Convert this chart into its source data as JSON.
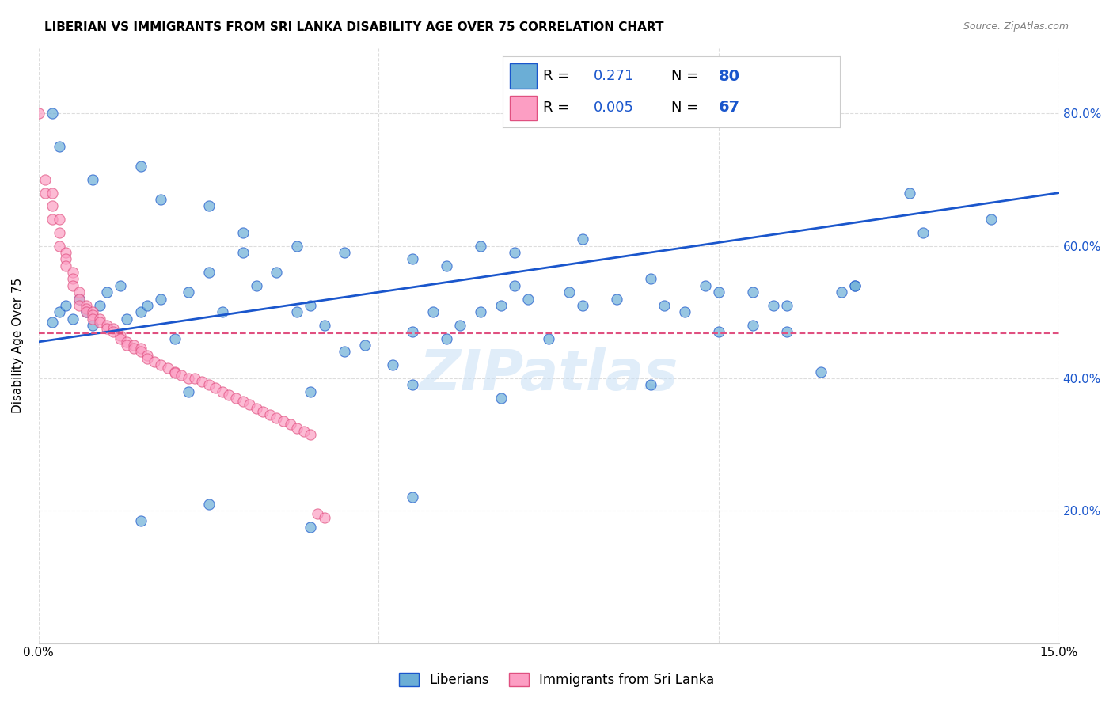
{
  "title": "LIBERIAN VS IMMIGRANTS FROM SRI LANKA DISABILITY AGE OVER 75 CORRELATION CHART",
  "source": "Source: ZipAtlas.com",
  "ylabel": "Disability Age Over 75",
  "legend_label_blue": "Liberians",
  "legend_label_pink": "Immigrants from Sri Lanka",
  "R_blue": "0.271",
  "N_blue": "80",
  "R_pink": "0.005",
  "N_pink": "67",
  "blue_color": "#6baed6",
  "pink_color": "#fc9ec3",
  "line_blue": "#1a56cc",
  "line_pink": "#e05080",
  "watermark": "ZIPatlas",
  "blue_scatter": [
    [
      0.002,
      0.485
    ],
    [
      0.003,
      0.5
    ],
    [
      0.004,
      0.51
    ],
    [
      0.005,
      0.49
    ],
    [
      0.006,
      0.52
    ],
    [
      0.007,
      0.5
    ],
    [
      0.008,
      0.48
    ],
    [
      0.009,
      0.51
    ],
    [
      0.01,
      0.53
    ],
    [
      0.012,
      0.54
    ],
    [
      0.013,
      0.49
    ],
    [
      0.015,
      0.5
    ],
    [
      0.016,
      0.51
    ],
    [
      0.018,
      0.52
    ],
    [
      0.02,
      0.46
    ],
    [
      0.022,
      0.53
    ],
    [
      0.025,
      0.56
    ],
    [
      0.027,
      0.5
    ],
    [
      0.03,
      0.59
    ],
    [
      0.032,
      0.54
    ],
    [
      0.035,
      0.56
    ],
    [
      0.038,
      0.5
    ],
    [
      0.04,
      0.51
    ],
    [
      0.042,
      0.48
    ],
    [
      0.045,
      0.44
    ],
    [
      0.048,
      0.45
    ],
    [
      0.052,
      0.42
    ],
    [
      0.055,
      0.47
    ],
    [
      0.058,
      0.5
    ],
    [
      0.06,
      0.46
    ],
    [
      0.062,
      0.48
    ],
    [
      0.065,
      0.5
    ],
    [
      0.068,
      0.51
    ],
    [
      0.07,
      0.54
    ],
    [
      0.072,
      0.52
    ],
    [
      0.075,
      0.46
    ],
    [
      0.078,
      0.53
    ],
    [
      0.08,
      0.51
    ],
    [
      0.085,
      0.52
    ],
    [
      0.09,
      0.55
    ],
    [
      0.092,
      0.51
    ],
    [
      0.095,
      0.5
    ],
    [
      0.098,
      0.54
    ],
    [
      0.1,
      0.53
    ],
    [
      0.105,
      0.48
    ],
    [
      0.108,
      0.51
    ],
    [
      0.11,
      0.47
    ],
    [
      0.115,
      0.41
    ],
    [
      0.118,
      0.53
    ],
    [
      0.12,
      0.54
    ],
    [
      0.002,
      0.8
    ],
    [
      0.003,
      0.75
    ],
    [
      0.008,
      0.7
    ],
    [
      0.015,
      0.72
    ],
    [
      0.018,
      0.67
    ],
    [
      0.025,
      0.66
    ],
    [
      0.03,
      0.62
    ],
    [
      0.038,
      0.6
    ],
    [
      0.045,
      0.59
    ],
    [
      0.055,
      0.58
    ],
    [
      0.06,
      0.57
    ],
    [
      0.065,
      0.6
    ],
    [
      0.07,
      0.59
    ],
    [
      0.08,
      0.61
    ],
    [
      0.022,
      0.38
    ],
    [
      0.04,
      0.38
    ],
    [
      0.055,
      0.39
    ],
    [
      0.068,
      0.37
    ],
    [
      0.015,
      0.185
    ],
    [
      0.04,
      0.175
    ],
    [
      0.025,
      0.21
    ],
    [
      0.055,
      0.22
    ],
    [
      0.09,
      0.39
    ],
    [
      0.1,
      0.47
    ],
    [
      0.105,
      0.53
    ],
    [
      0.11,
      0.51
    ],
    [
      0.12,
      0.54
    ],
    [
      0.13,
      0.62
    ],
    [
      0.14,
      0.64
    ],
    [
      0.128,
      0.68
    ]
  ],
  "pink_scatter": [
    [
      0.0,
      0.8
    ],
    [
      0.001,
      0.7
    ],
    [
      0.001,
      0.68
    ],
    [
      0.002,
      0.68
    ],
    [
      0.002,
      0.66
    ],
    [
      0.002,
      0.64
    ],
    [
      0.003,
      0.64
    ],
    [
      0.003,
      0.62
    ],
    [
      0.003,
      0.6
    ],
    [
      0.004,
      0.59
    ],
    [
      0.004,
      0.58
    ],
    [
      0.004,
      0.57
    ],
    [
      0.005,
      0.56
    ],
    [
      0.005,
      0.55
    ],
    [
      0.005,
      0.54
    ],
    [
      0.006,
      0.53
    ],
    [
      0.006,
      0.52
    ],
    [
      0.006,
      0.51
    ],
    [
      0.007,
      0.51
    ],
    [
      0.007,
      0.505
    ],
    [
      0.007,
      0.5
    ],
    [
      0.008,
      0.5
    ],
    [
      0.008,
      0.495
    ],
    [
      0.008,
      0.49
    ],
    [
      0.009,
      0.49
    ],
    [
      0.009,
      0.485
    ],
    [
      0.01,
      0.48
    ],
    [
      0.01,
      0.475
    ],
    [
      0.011,
      0.475
    ],
    [
      0.011,
      0.47
    ],
    [
      0.012,
      0.465
    ],
    [
      0.012,
      0.46
    ],
    [
      0.013,
      0.455
    ],
    [
      0.013,
      0.45
    ],
    [
      0.014,
      0.45
    ],
    [
      0.014,
      0.445
    ],
    [
      0.015,
      0.445
    ],
    [
      0.015,
      0.44
    ],
    [
      0.016,
      0.435
    ],
    [
      0.016,
      0.43
    ],
    [
      0.017,
      0.425
    ],
    [
      0.018,
      0.42
    ],
    [
      0.019,
      0.415
    ],
    [
      0.02,
      0.41
    ],
    [
      0.02,
      0.408
    ],
    [
      0.021,
      0.405
    ],
    [
      0.022,
      0.4
    ],
    [
      0.023,
      0.4
    ],
    [
      0.024,
      0.395
    ],
    [
      0.025,
      0.39
    ],
    [
      0.026,
      0.385
    ],
    [
      0.027,
      0.38
    ],
    [
      0.028,
      0.375
    ],
    [
      0.029,
      0.37
    ],
    [
      0.03,
      0.365
    ],
    [
      0.031,
      0.36
    ],
    [
      0.032,
      0.355
    ],
    [
      0.033,
      0.35
    ],
    [
      0.034,
      0.345
    ],
    [
      0.035,
      0.34
    ],
    [
      0.036,
      0.335
    ],
    [
      0.037,
      0.33
    ],
    [
      0.038,
      0.325
    ],
    [
      0.039,
      0.32
    ],
    [
      0.04,
      0.315
    ],
    [
      0.041,
      0.195
    ],
    [
      0.042,
      0.19
    ]
  ],
  "xlim": [
    0.0,
    0.15
  ],
  "ylim": [
    0.0,
    0.9
  ],
  "blue_line_x": [
    0.0,
    0.15
  ],
  "blue_line_y": [
    0.455,
    0.68
  ],
  "pink_line_x": [
    0.0,
    0.15
  ],
  "pink_line_y": [
    0.468,
    0.468
  ],
  "legend_fontsize": 13,
  "legend_n_fontsize": 14
}
